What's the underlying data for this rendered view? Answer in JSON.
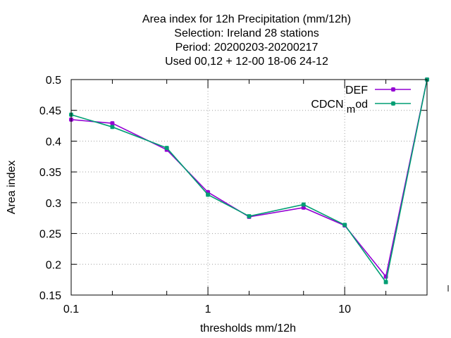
{
  "chart_data": {
    "type": "line",
    "title_lines": [
      "Area index  for 12h Precipitation (mm/12h)",
      "Selection: Ireland     28 stations",
      "Period: 20200203-20200217",
      "Used  00,12  + 12-00 18-06 24-12"
    ],
    "xlabel": "thresholds mm/12h",
    "ylabel": "Area index",
    "x_scale": "log",
    "xlim": [
      0.1,
      40
    ],
    "ylim": [
      0.15,
      0.5
    ],
    "x_ticks": [
      {
        "value": 0.1,
        "label": "0.1"
      },
      {
        "value": 1,
        "label": "1"
      },
      {
        "value": 10,
        "label": "10"
      }
    ],
    "x_minor_ticks": [
      0.2,
      0.5,
      2,
      5,
      20,
      40
    ],
    "y_ticks": [
      {
        "value": 0.15,
        "label": "0.15"
      },
      {
        "value": 0.2,
        "label": "0.2"
      },
      {
        "value": 0.25,
        "label": "0.25"
      },
      {
        "value": 0.3,
        "label": "0.3"
      },
      {
        "value": 0.35,
        "label": "0.35"
      },
      {
        "value": 0.4,
        "label": "0.4"
      },
      {
        "value": 0.45,
        "label": "0.45"
      },
      {
        "value": 0.5,
        "label": "0.5"
      }
    ],
    "grid": true,
    "legend_position": "top-right",
    "legend_mod_subscript": "m",
    "legend_mod_suffix": "od",
    "series": [
      {
        "name": "DEF",
        "color": "#9400d3",
        "x": [
          0.1,
          0.2,
          0.5,
          1,
          2,
          5,
          10,
          20,
          40
        ],
        "y": [
          0.435,
          0.429,
          0.386,
          0.317,
          0.277,
          0.292,
          0.263,
          0.18,
          0.5
        ]
      },
      {
        "name": "CDCN",
        "color": "#009e73",
        "x": [
          0.1,
          0.2,
          0.5,
          1,
          2,
          5,
          10,
          20,
          40
        ],
        "y": [
          0.443,
          0.423,
          0.389,
          0.313,
          0.278,
          0.297,
          0.264,
          0.171,
          0.5
        ]
      }
    ]
  }
}
